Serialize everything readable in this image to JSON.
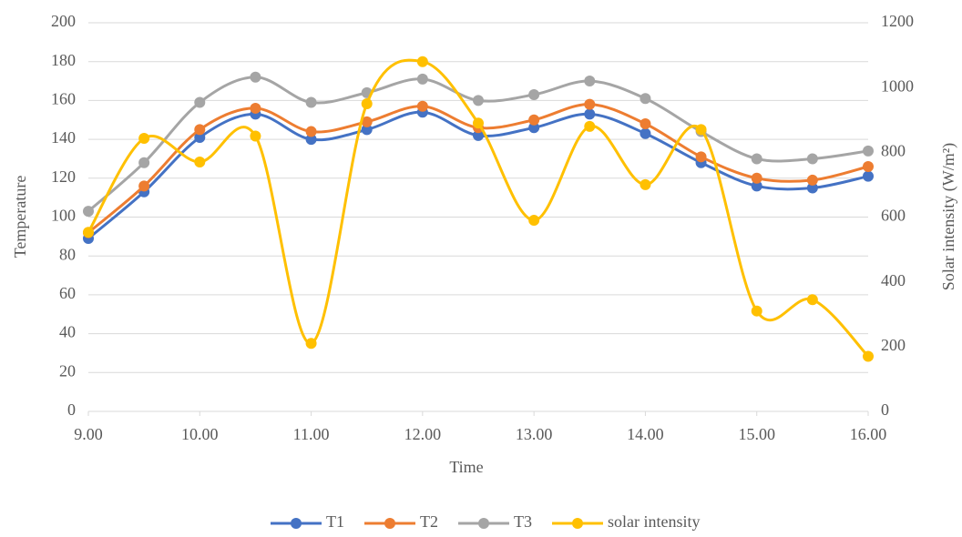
{
  "chart_data": {
    "type": "line",
    "x_label": "Time",
    "y_label": "Temperature",
    "y2_label": "Solar intensity  (W/m²)",
    "x": [
      9,
      9.5,
      10,
      10.5,
      11,
      11.5,
      12,
      12.5,
      13,
      13.5,
      14,
      14.5,
      15,
      15.5,
      16
    ],
    "xlim": [
      9,
      16
    ],
    "xticks": [
      {
        "value": 9,
        "label": "9.00"
      },
      {
        "value": 10,
        "label": "10.00"
      },
      {
        "value": 11,
        "label": "11.00"
      },
      {
        "value": 12,
        "label": "12.00"
      },
      {
        "value": 13,
        "label": "13.00"
      },
      {
        "value": 14,
        "label": "14.00"
      },
      {
        "value": 15,
        "label": "15.00"
      },
      {
        "value": 16,
        "label": "16.00"
      }
    ],
    "ylim": [
      0,
      200
    ],
    "yticks": [
      0,
      20,
      40,
      60,
      80,
      100,
      120,
      140,
      160,
      180,
      200
    ],
    "y2lim": [
      0,
      1200
    ],
    "y2ticks": [
      0,
      200,
      400,
      600,
      800,
      1000,
      1200
    ],
    "grid": true,
    "legend": "bottom",
    "series": [
      {
        "name": "T1",
        "color": "#4472c4",
        "values": [
          89,
          113,
          141,
          153,
          140,
          145,
          154,
          142,
          146,
          153,
          143,
          128,
          116,
          115,
          121
        ]
      },
      {
        "name": "T2",
        "color": "#ed7d31",
        "values": [
          92,
          116,
          145,
          156,
          144,
          149,
          157,
          146,
          150,
          158,
          148,
          131,
          120,
          119,
          126
        ]
      },
      {
        "name": "T3",
        "color": "#a5a5a5",
        "values": [
          103,
          128,
          159,
          172,
          159,
          164,
          171,
          160,
          163,
          170,
          161,
          144,
          130,
          130,
          134
        ]
      },
      {
        "name": "solar intensity",
        "color": "#ffc000",
        "axis": "y2",
        "values": [
          553,
          843,
          770,
          850,
          210,
          950,
          1080,
          890,
          590,
          880,
          700,
          870,
          310,
          345,
          170
        ]
      }
    ]
  }
}
